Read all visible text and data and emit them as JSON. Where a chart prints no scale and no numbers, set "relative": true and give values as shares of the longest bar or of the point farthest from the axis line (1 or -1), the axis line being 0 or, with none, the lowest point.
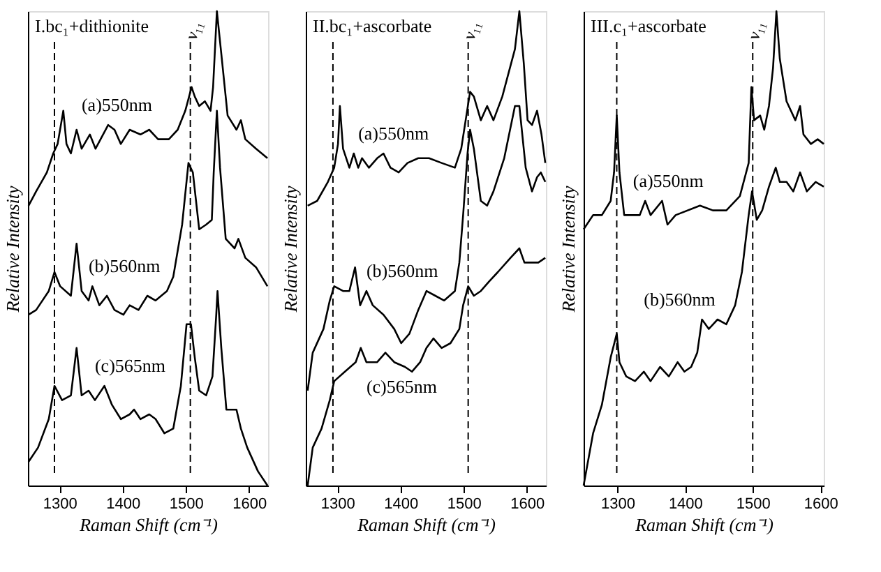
{
  "chart_data": [
    {
      "type": "line",
      "title": "I.bc₁+dithionite",
      "xlabel": "Raman Shift (cm⁻¹)",
      "ylabel": "Relative Intensity",
      "relative": true,
      "xlim": [
        1250,
        1630
      ],
      "xticks": [
        1300,
        1400,
        1500,
        1600
      ],
      "tick_labels": "x",
      "grid": false,
      "line_style": "solid",
      "marker": "none",
      "series": [
        {
          "name": "(a)550nm",
          "color": "#000000",
          "x": [
            1251,
            1263,
            1280,
            1290,
            1297,
            1306,
            1311,
            1318,
            1327,
            1335,
            1348,
            1357,
            1377,
            1387,
            1397,
            1411,
            1428,
            1442,
            1456,
            1473,
            1487,
            1499,
            1509,
            1514,
            1521,
            1530,
            1539,
            1543,
            1549,
            1556,
            1566,
            1580,
            1587,
            1594,
            1611,
            1629
          ],
          "values": [
            0.59,
            0.62,
            0.66,
            0.7,
            0.72,
            0.79,
            0.72,
            0.7,
            0.75,
            0.71,
            0.74,
            0.71,
            0.76,
            0.75,
            0.72,
            0.75,
            0.74,
            0.75,
            0.73,
            0.73,
            0.75,
            0.79,
            0.84,
            0.82,
            0.8,
            0.81,
            0.79,
            0.84,
            1.0,
            0.91,
            0.78,
            0.75,
            0.77,
            0.73,
            0.71,
            0.69
          ]
        },
        {
          "name": "(b)560nm",
          "color": "#000000",
          "x": [
            1251,
            1263,
            1283,
            1292,
            1301,
            1318,
            1327,
            1335,
            1346,
            1352,
            1363,
            1375,
            1387,
            1401,
            1411,
            1425,
            1439,
            1452,
            1470,
            1480,
            1494,
            1504,
            1511,
            1521,
            1532,
            1541,
            1544,
            1549,
            1554,
            1563,
            1577,
            1583,
            1594,
            1611,
            1629
          ],
          "values": [
            0.36,
            0.37,
            0.41,
            0.45,
            0.42,
            0.4,
            0.51,
            0.41,
            0.39,
            0.42,
            0.38,
            0.4,
            0.37,
            0.36,
            0.38,
            0.37,
            0.4,
            0.39,
            0.41,
            0.44,
            0.55,
            0.68,
            0.66,
            0.54,
            0.55,
            0.56,
            0.66,
            0.79,
            0.67,
            0.52,
            0.5,
            0.52,
            0.48,
            0.46,
            0.42
          ]
        },
        {
          "name": "(c)565nm",
          "color": "#000000",
          "x": [
            1251,
            1266,
            1283,
            1292,
            1304,
            1318,
            1327,
            1335,
            1346,
            1356,
            1371,
            1383,
            1397,
            1411,
            1418,
            1428,
            1442,
            1452,
            1466,
            1480,
            1492,
            1501,
            1508,
            1514,
            1521,
            1532,
            1542,
            1548,
            1550,
            1556,
            1564,
            1580,
            1587,
            1597,
            1614,
            1629
          ],
          "values": [
            0.05,
            0.08,
            0.14,
            0.21,
            0.18,
            0.19,
            0.29,
            0.19,
            0.2,
            0.18,
            0.21,
            0.17,
            0.14,
            0.15,
            0.16,
            0.14,
            0.15,
            0.14,
            0.11,
            0.12,
            0.21,
            0.34,
            0.34,
            0.27,
            0.2,
            0.19,
            0.23,
            0.36,
            0.41,
            0.29,
            0.16,
            0.16,
            0.12,
            0.08,
            0.03,
            0.0
          ]
        }
      ],
      "ref_lines": [
        {
          "axis": "x",
          "value": 1292,
          "line_style": "dashed",
          "color": "#000000"
        },
        {
          "axis": "x",
          "value": 1507,
          "label": "ν₁₁",
          "line_style": "dashed",
          "color": "#000000"
        }
      ]
    },
    {
      "type": "line",
      "title": "II.bc₁+ascorbate",
      "xlabel": "Raman Shift (cm⁻¹)",
      "ylabel": "Relative Intensity",
      "relative": true,
      "xlim": [
        1250,
        1630
      ],
      "xticks": [
        1300,
        1400,
        1500,
        1600
      ],
      "tick_labels": "x",
      "grid": false,
      "line_style": "solid",
      "marker": "none",
      "series": [
        {
          "name": "(a)550nm",
          "color": "#000000",
          "x": [
            1253,
            1268,
            1285,
            1295,
            1301,
            1304,
            1309,
            1319,
            1326,
            1333,
            1339,
            1350,
            1363,
            1373,
            1384,
            1397,
            1411,
            1428,
            1445,
            1465,
            1486,
            1496,
            1503,
            1510,
            1516,
            1527,
            1537,
            1547,
            1561,
            1581,
            1588,
            1595,
            1601,
            1608,
            1616,
            1623,
            1629
          ],
          "values": [
            0.59,
            0.6,
            0.64,
            0.67,
            0.72,
            0.8,
            0.71,
            0.67,
            0.7,
            0.67,
            0.69,
            0.67,
            0.69,
            0.7,
            0.67,
            0.66,
            0.68,
            0.69,
            0.69,
            0.68,
            0.67,
            0.71,
            0.77,
            0.83,
            0.82,
            0.77,
            0.8,
            0.77,
            0.82,
            0.92,
            1.0,
            0.89,
            0.77,
            0.76,
            0.79,
            0.74,
            0.68
          ]
        },
        {
          "name": "(b)560nm",
          "color": "#000000",
          "x": [
            1253,
            1261,
            1278,
            1288,
            1295,
            1309,
            1319,
            1328,
            1336,
            1346,
            1356,
            1373,
            1390,
            1401,
            1414,
            1428,
            1441,
            1455,
            1469,
            1486,
            1493,
            1499,
            1506,
            1510,
            1516,
            1527,
            1537,
            1547,
            1564,
            1581,
            1588,
            1598,
            1608,
            1616,
            1622,
            1629
          ],
          "values": [
            0.2,
            0.28,
            0.33,
            0.39,
            0.42,
            0.41,
            0.41,
            0.46,
            0.38,
            0.41,
            0.38,
            0.36,
            0.33,
            0.3,
            0.32,
            0.37,
            0.41,
            0.4,
            0.39,
            0.41,
            0.47,
            0.57,
            0.7,
            0.75,
            0.71,
            0.6,
            0.59,
            0.62,
            0.69,
            0.8,
            0.8,
            0.67,
            0.62,
            0.65,
            0.66,
            0.64
          ]
        },
        {
          "name": "(c)565nm",
          "color": "#000000",
          "x": [
            1253,
            1261,
            1275,
            1288,
            1295,
            1312,
            1329,
            1337,
            1346,
            1363,
            1376,
            1390,
            1407,
            1418,
            1431,
            1441,
            1452,
            1465,
            1479,
            1493,
            1499,
            1507,
            1516,
            1527,
            1540,
            1554,
            1574,
            1588,
            1596,
            1608,
            1618,
            1629
          ],
          "values": [
            0.0,
            0.08,
            0.12,
            0.18,
            0.22,
            0.24,
            0.26,
            0.29,
            0.26,
            0.26,
            0.28,
            0.26,
            0.25,
            0.24,
            0.26,
            0.29,
            0.31,
            0.29,
            0.3,
            0.33,
            0.38,
            0.42,
            0.4,
            0.41,
            0.43,
            0.45,
            0.48,
            0.5,
            0.47,
            0.47,
            0.47,
            0.48
          ]
        }
      ],
      "ref_lines": [
        {
          "axis": "x",
          "value": 1293,
          "line_style": "dashed",
          "color": "#000000"
        },
        {
          "axis": "x",
          "value": 1507,
          "label": "ν₁₁",
          "line_style": "dashed",
          "color": "#000000"
        }
      ]
    },
    {
      "type": "line",
      "title": "III.c₁+ascorbate",
      "xlabel": "Raman Shift (cm⁻¹)",
      "ylabel": "Relative Intensity",
      "relative": true,
      "xlim": [
        1250,
        1605
      ],
      "xticks": [
        1300,
        1400,
        1500,
        1600
      ],
      "tick_labels": "x",
      "grid": false,
      "line_style": "solid",
      "marker": "none",
      "series": [
        {
          "name": "(a)550nm",
          "color": "#000000",
          "x": [
            1250,
            1264,
            1277,
            1290,
            1295,
            1299,
            1303,
            1310,
            1323,
            1333,
            1341,
            1349,
            1366,
            1374,
            1386,
            1422,
            1441,
            1461,
            1481,
            1494,
            1498,
            1502,
            1511,
            1517,
            1524,
            1530,
            1535,
            1540,
            1550,
            1563,
            1570,
            1575,
            1586,
            1596,
            1605
          ],
          "values": [
            0.54,
            0.57,
            0.57,
            0.6,
            0.66,
            0.78,
            0.66,
            0.57,
            0.57,
            0.57,
            0.6,
            0.57,
            0.6,
            0.55,
            0.57,
            0.59,
            0.58,
            0.58,
            0.61,
            0.68,
            0.84,
            0.77,
            0.78,
            0.75,
            0.8,
            0.88,
            1.0,
            0.9,
            0.81,
            0.77,
            0.8,
            0.74,
            0.72,
            0.73,
            0.72
          ]
        },
        {
          "name": "(b)560nm",
          "color": "#000000",
          "x": [
            1250,
            1264,
            1277,
            1290,
            1299,
            1303,
            1313,
            1326,
            1339,
            1349,
            1363,
            1376,
            1389,
            1399,
            1409,
            1418,
            1425,
            1435,
            1448,
            1461,
            1474,
            1484,
            1494,
            1499,
            1506,
            1514,
            1524,
            1534,
            1540,
            1550,
            1560,
            1570,
            1580,
            1593,
            1605
          ],
          "values": [
            0.0,
            0.11,
            0.17,
            0.27,
            0.32,
            0.26,
            0.23,
            0.22,
            0.24,
            0.22,
            0.25,
            0.23,
            0.26,
            0.24,
            0.25,
            0.28,
            0.35,
            0.33,
            0.35,
            0.34,
            0.38,
            0.45,
            0.57,
            0.62,
            0.56,
            0.58,
            0.63,
            0.67,
            0.64,
            0.64,
            0.62,
            0.66,
            0.62,
            0.64,
            0.63
          ]
        }
      ],
      "ref_lines": [
        {
          "axis": "x",
          "value": 1299,
          "line_style": "dashed",
          "color": "#000000"
        },
        {
          "axis": "x",
          "value": 1500,
          "label": "ν₁₁",
          "line_style": "dashed",
          "color": "#000000"
        }
      ]
    }
  ]
}
